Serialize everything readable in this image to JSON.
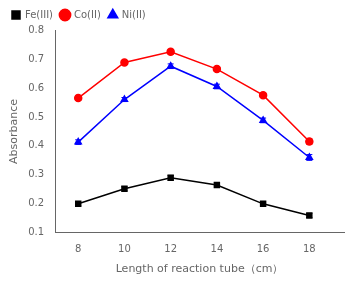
{
  "chart_data": {
    "type": "line",
    "xlabel": "Length of reaction tube（cm）",
    "ylabel": "Absorbance",
    "x": [
      8,
      10,
      12,
      14,
      16,
      18
    ],
    "series": [
      {
        "name": "Fe(III)",
        "color": "#000000",
        "marker": "square",
        "values": [
          0.2,
          0.252,
          0.29,
          0.265,
          0.2,
          0.16
        ],
        "errors": [
          0.007,
          0.007,
          0.008,
          0.007,
          0.007,
          0.007
        ]
      },
      {
        "name": "Co(II)",
        "color": "#ff0000",
        "marker": "circle",
        "values": [
          0.565,
          0.688,
          0.725,
          0.665,
          0.575,
          0.415
        ],
        "errors": [
          0.008,
          0.007,
          0.008,
          0.008,
          0.008,
          0.01
        ]
      },
      {
        "name": "Ni(II)",
        "color": "#0000ff",
        "marker": "triangle",
        "values": [
          0.413,
          0.56,
          0.675,
          0.605,
          0.488,
          0.36
        ],
        "errors": [
          0.008,
          0.007,
          0.008,
          0.008,
          0.008,
          0.01
        ]
      }
    ],
    "xlim": [
      7.0,
      19.5
    ],
    "xticks": [
      8,
      10,
      12,
      14,
      16,
      18
    ],
    "ylim": [
      0.1,
      0.8
    ],
    "yticks": [
      0.1,
      0.2,
      0.3,
      0.4,
      0.5,
      0.6,
      0.7,
      0.8
    ],
    "grid": false,
    "legend": "upper left"
  }
}
